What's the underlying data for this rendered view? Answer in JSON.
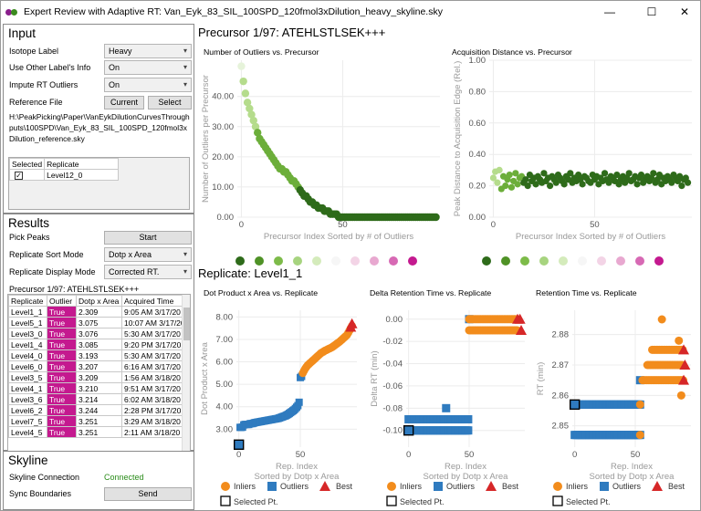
{
  "window": {
    "title": "Expert Review with Adaptive RT: Van_Eyk_83_SIL_100SPD_120fmol3xDilution_heavy_skyline.sky",
    "minimize": "—",
    "maximize": "☐",
    "close": "✕"
  },
  "input": {
    "header": "Input",
    "isotope_label": "Isotope Label",
    "isotope_value": "Heavy",
    "other_label": "Use Other Label's Info",
    "other_value": "On",
    "impute_label": "Impute RT Outliers",
    "impute_value": "On",
    "reference_label": "Reference File",
    "current_btn": "Current",
    "select_btn": "Select",
    "path": "H:\\PeakPicking\\Paper\\VanEykDilutionCurvesThroughputs\\100SPD\\Van_Eyk_83_SIL_100SPD_120fmol3xDilution_reference.sky",
    "table_headers": [
      "Selected",
      "Replicate"
    ],
    "table_rows": [
      {
        "checked": "✓",
        "replicate": "Level12_0"
      }
    ]
  },
  "results": {
    "header": "Results",
    "pick_label": "Pick Peaks",
    "start_btn": "Start",
    "sort_label": "Replicate Sort Mode",
    "sort_value": "Dotp x Area",
    "display_label": "Replicate Display Mode",
    "display_value": "Corrected RT.",
    "precursor_line": "Precursor 1/97: ATEHLSTLSEK+++",
    "headers": [
      "Replicate",
      "Outlier",
      "Dotp x Area",
      "Acquired Time"
    ],
    "rows": [
      [
        "Level1_1",
        "True",
        "2.309",
        "9:05 AM 3/17/20"
      ],
      [
        "Level5_1",
        "True",
        "3.075",
        "10:07 AM 3/17/20"
      ],
      [
        "Level3_0",
        "True",
        "3.076",
        "5:30 AM 3/17/20"
      ],
      [
        "Level1_4",
        "True",
        "3.085",
        "9:20 PM 3/17/20"
      ],
      [
        "Level4_0",
        "True",
        "3.193",
        "5:30 AM 3/17/20"
      ],
      [
        "Level6_0",
        "True",
        "3.207",
        "6:16 AM 3/17/20"
      ],
      [
        "Level3_5",
        "True",
        "3.209",
        "1:56 AM 3/18/20"
      ],
      [
        "Level4_1",
        "True",
        "3.210",
        "9:51 AM 3/17/20"
      ],
      [
        "Level3_6",
        "True",
        "3.214",
        "6:02 AM 3/18/20"
      ],
      [
        "Level6_2",
        "True",
        "3.244",
        "2:28 PM 3/17/20"
      ],
      [
        "Level7_5",
        "True",
        "3.251",
        "3:29 AM 3/18/20"
      ],
      [
        "Level4_5",
        "True",
        "3.251",
        "2:11 AM 3/18/20"
      ]
    ]
  },
  "skyline": {
    "header": "Skyline",
    "connection_label": "Skyline Connection",
    "connection_value": "Connected",
    "sync_label": "Sync Boundaries",
    "send_btn": "Send"
  },
  "main": {
    "precursor_header": "Precursor 1/97: ATEHLSTLSEK+++",
    "replicate_header": "Replicate: Level1_1"
  },
  "colors": {
    "green_dark": "#2e6b1a",
    "green_mid": "#6cae3a",
    "green_light": "#b5dc8c",
    "pink": "#c4198f",
    "blue": "#2f7bbf",
    "orange": "#f28c1c",
    "red": "#d62728"
  },
  "chart_data": [
    {
      "type": "scatter",
      "title": "Number of Outliers vs. Precursor",
      "xlabel": "Precursor Index Sorted by # of Outliers",
      "ylabel": "Number of Outliers per Precursor",
      "xlim": [
        -2,
        98
      ],
      "ylim": [
        0,
        52
      ],
      "yticks": [
        "0.00",
        "10.00",
        "20.00",
        "30.00",
        "40.00"
      ],
      "ytick_values": [
        0,
        10,
        20,
        30,
        40
      ],
      "xticks": [
        "0",
        "50"
      ],
      "xtick_values": [
        0,
        50
      ],
      "grid": true,
      "x": [
        0,
        1,
        2,
        3,
        4,
        5,
        6,
        7,
        8,
        9,
        10,
        11,
        12,
        13,
        14,
        15,
        16,
        17,
        18,
        19,
        20,
        21,
        22,
        23,
        24,
        25,
        26,
        27,
        28,
        29,
        30,
        31,
        32,
        33,
        34,
        35,
        36,
        37,
        38,
        39,
        40,
        41,
        42,
        43,
        44,
        45,
        46,
        47,
        48,
        49,
        50,
        51,
        52,
        53,
        54,
        55,
        56,
        57,
        58,
        59,
        60,
        61,
        62,
        63,
        64,
        65,
        66,
        67,
        68,
        69,
        70,
        71,
        72,
        73,
        74,
        75,
        76,
        77,
        78,
        79,
        80,
        81,
        82,
        83,
        84,
        85,
        86,
        87,
        88,
        89,
        90,
        91,
        92,
        93,
        94,
        95,
        96
      ],
      "y": [
        50,
        45,
        41,
        38,
        36,
        34,
        32,
        30,
        28,
        26,
        25,
        24,
        23,
        22,
        21,
        20,
        19,
        18,
        17,
        16,
        16,
        15,
        15,
        14,
        13,
        12,
        12,
        11,
        10,
        9,
        8,
        7,
        7,
        6,
        5,
        5,
        4,
        4,
        3,
        3,
        3,
        2,
        2,
        2,
        1,
        1,
        1,
        1,
        0,
        0,
        0,
        0,
        0,
        0,
        0,
        0,
        0,
        0,
        0,
        0,
        0,
        0,
        0,
        0,
        0,
        0,
        0,
        0,
        0,
        0,
        0,
        0,
        0,
        0,
        0,
        0,
        0,
        0,
        0,
        0,
        0,
        0,
        0,
        0,
        0,
        0,
        0,
        0,
        0,
        0,
        0,
        0,
        0,
        0,
        0,
        0,
        0
      ]
    },
    {
      "type": "scatter",
      "title": "Acquisition Distance vs. Precursor",
      "xlabel": "Precursor Index Sorted by # of Outliers",
      "ylabel": "Peak Distance to Acquisition Edge (Rel.)",
      "xlim": [
        -2,
        98
      ],
      "ylim": [
        0,
        1.0
      ],
      "yticks": [
        "0.00",
        "0.20",
        "0.40",
        "0.60",
        "0.80",
        "1.00"
      ],
      "ytick_values": [
        0,
        0.2,
        0.4,
        0.6,
        0.8,
        1.0
      ],
      "xticks": [
        "0",
        "50"
      ],
      "xtick_values": [
        0,
        50
      ],
      "grid": true,
      "x": [
        0,
        1,
        2,
        3,
        4,
        5,
        6,
        7,
        8,
        9,
        10,
        11,
        12,
        13,
        14,
        15,
        16,
        17,
        18,
        19,
        20,
        21,
        22,
        23,
        24,
        25,
        26,
        27,
        28,
        29,
        30,
        31,
        32,
        33,
        34,
        35,
        36,
        37,
        38,
        39,
        40,
        41,
        42,
        43,
        44,
        45,
        46,
        47,
        48,
        49,
        50,
        51,
        52,
        53,
        54,
        55,
        56,
        57,
        58,
        59,
        60,
        61,
        62,
        63,
        64,
        65,
        66,
        67,
        68,
        69,
        70,
        71,
        72,
        73,
        74,
        75,
        76,
        77,
        78,
        79,
        80,
        81,
        82,
        83,
        84,
        85,
        86,
        87,
        88,
        89,
        90,
        91,
        92,
        93,
        94,
        95,
        96
      ],
      "y": [
        0.25,
        0.29,
        0.22,
        0.3,
        0.18,
        0.26,
        0.2,
        0.24,
        0.27,
        0.19,
        0.23,
        0.28,
        0.21,
        0.25,
        0.26,
        0.22,
        0.24,
        0.2,
        0.27,
        0.23,
        0.25,
        0.21,
        0.26,
        0.24,
        0.22,
        0.28,
        0.23,
        0.25,
        0.2,
        0.26,
        0.24,
        0.22,
        0.27,
        0.25,
        0.23,
        0.21,
        0.26,
        0.24,
        0.28,
        0.22,
        0.25,
        0.23,
        0.27,
        0.24,
        0.21,
        0.26,
        0.25,
        0.23,
        0.22,
        0.27,
        0.24,
        0.26,
        0.21,
        0.25,
        0.23,
        0.28,
        0.24,
        0.22,
        0.26,
        0.25,
        0.23,
        0.27,
        0.21,
        0.24,
        0.26,
        0.22,
        0.25,
        0.28,
        0.23,
        0.24,
        0.26,
        0.21,
        0.25,
        0.27,
        0.22,
        0.24,
        0.26,
        0.23,
        0.25,
        0.28,
        0.22,
        0.24,
        0.27,
        0.21,
        0.25,
        0.23,
        0.26,
        0.24,
        0.22,
        0.27,
        0.25,
        0.23,
        0.26,
        0.2,
        0.24,
        0.25,
        0.22
      ]
    },
    {
      "type": "scatter",
      "title": "Dot Product x Area vs. Replicate",
      "xlabel": "Rep. Index",
      "xlabel2": "Sorted by Dotp x Area",
      "ylabel": "Dot Product x Area",
      "xlim": [
        -2,
        96
      ],
      "ylim": [
        2.2,
        8.3
      ],
      "yticks": [
        "3.00",
        "4.00",
        "5.00",
        "6.00",
        "7.00",
        "8.00"
      ],
      "ytick_values": [
        3,
        4,
        5,
        6,
        7,
        8
      ],
      "xticks": [
        "0",
        "50"
      ],
      "xtick_values": [
        0,
        50
      ],
      "legend": [
        "Inliers",
        "Outliers",
        "Best",
        "Selected Pt."
      ],
      "outliers_x": [
        0,
        1,
        2,
        3,
        4,
        5,
        6,
        7,
        8,
        9,
        10,
        11,
        12,
        13,
        14,
        15,
        16,
        17,
        18,
        19,
        20,
        21,
        22,
        23,
        24,
        25,
        26,
        27,
        28,
        29,
        30,
        31,
        32,
        33,
        34,
        35,
        36,
        37,
        38,
        39,
        40,
        41,
        42,
        43,
        44,
        45,
        46,
        47,
        48,
        49,
        50,
        51
      ],
      "outliers_y": [
        2.31,
        3.08,
        3.08,
        3.09,
        3.19,
        3.21,
        3.21,
        3.21,
        3.21,
        3.24,
        3.25,
        3.25,
        3.27,
        3.29,
        3.3,
        3.31,
        3.32,
        3.33,
        3.34,
        3.35,
        3.36,
        3.37,
        3.38,
        3.39,
        3.4,
        3.41,
        3.42,
        3.43,
        3.44,
        3.45,
        3.46,
        3.47,
        3.48,
        3.5,
        3.52,
        3.54,
        3.56,
        3.58,
        3.6,
        3.63,
        3.66,
        3.7,
        3.74,
        3.78,
        3.82,
        3.86,
        3.92,
        3.98,
        4.05,
        4.2,
        5.3,
        5.35
      ],
      "inliers_x": [
        52,
        53,
        54,
        55,
        56,
        57,
        58,
        59,
        60,
        61,
        62,
        63,
        64,
        65,
        66,
        67,
        68,
        69,
        70,
        71,
        72,
        73,
        74,
        75,
        76,
        77,
        78,
        79,
        80,
        81,
        82,
        83,
        84,
        85,
        86,
        87,
        88,
        89,
        90,
        91,
        92
      ],
      "inliers_y": [
        5.5,
        5.6,
        5.7,
        5.78,
        5.85,
        5.9,
        5.95,
        6.0,
        6.05,
        6.1,
        6.15,
        6.2,
        6.25,
        6.3,
        6.35,
        6.4,
        6.43,
        6.46,
        6.5,
        6.52,
        6.55,
        6.58,
        6.6,
        6.63,
        6.66,
        6.7,
        6.74,
        6.78,
        6.82,
        6.86,
        6.9,
        6.95,
        7.0,
        7.05,
        7.1,
        7.15,
        7.2,
        7.3,
        7.4,
        7.5,
        7.6
      ],
      "best": [
        [
          91,
          7.55
        ],
        [
          92,
          7.7
        ]
      ],
      "selected": [
        0,
        2.31
      ]
    },
    {
      "type": "scatter",
      "title": "Delta Retention Time vs. Replicate",
      "xlabel": "Rep. Index",
      "xlabel2": "Sorted by Dotp x Area",
      "ylabel": "Delta RT (min)",
      "xlim": [
        -2,
        96
      ],
      "ylim": [
        -0.115,
        0.008
      ],
      "yticks": [
        "-0.10",
        "-0.08",
        "-0.06",
        "-0.04",
        "-0.02",
        "0.00"
      ],
      "ytick_values": [
        -0.1,
        -0.08,
        -0.06,
        -0.04,
        -0.02,
        0
      ],
      "xticks": [
        "0",
        "50"
      ],
      "xtick_values": [
        0,
        50
      ],
      "legend": [
        "Inliers",
        "Outliers",
        "Best",
        "Selected Pt."
      ],
      "outlier_bands": [
        {
          "x0": 0,
          "x1": 50,
          "y": -0.1
        },
        {
          "x0": 0,
          "x1": 50,
          "y": -0.09
        }
      ],
      "outlier_extra": [
        [
          31,
          -0.08
        ],
        [
          50,
          0.0
        ]
      ],
      "inlier_bands": [
        {
          "x0": 50,
          "x1": 90,
          "y": 0.0
        },
        {
          "x0": 50,
          "x1": 90,
          "y": -0.01
        }
      ],
      "best": [
        [
          92,
          0.0
        ],
        [
          93,
          -0.01
        ],
        [
          90,
          0.0
        ]
      ],
      "selected": [
        0,
        -0.1
      ]
    },
    {
      "type": "scatter",
      "title": "Retention Time vs. Replicate",
      "xlabel": "Rep. Index",
      "xlabel2": "Sorted by Dotp x Area",
      "ylabel": "RT (min)",
      "xlim": [
        -2,
        96
      ],
      "ylim": [
        2.843,
        2.888
      ],
      "yticks": [
        "2.85",
        "2.86",
        "2.87",
        "2.88"
      ],
      "ytick_values": [
        2.85,
        2.86,
        2.87,
        2.88
      ],
      "xticks": [
        "0",
        "50"
      ],
      "xtick_values": [
        0,
        50
      ],
      "legend": [
        "Inliers",
        "Outliers",
        "Best",
        "Selected Pt."
      ],
      "outlier_bands": [
        {
          "x0": 0,
          "x1": 55,
          "y": 2.847
        },
        {
          "x0": 0,
          "x1": 55,
          "y": 2.857
        }
      ],
      "outlier_extra": [
        [
          54,
          2.865
        ]
      ],
      "inlier_bands": [
        {
          "x0": 56,
          "x1": 90,
          "y": 2.865
        },
        {
          "x0": 60,
          "x1": 90,
          "y": 2.87
        },
        {
          "x0": 64,
          "x1": 90,
          "y": 2.875
        }
      ],
      "inlier_extra": [
        [
          54,
          2.857
        ],
        [
          54,
          2.847
        ],
        [
          72,
          2.885
        ],
        [
          86,
          2.878
        ],
        [
          88,
          2.86
        ]
      ],
      "best": [
        [
          90,
          2.875
        ],
        [
          91,
          2.87
        ],
        [
          90,
          2.865
        ]
      ],
      "selected": [
        0,
        2.857
      ]
    }
  ]
}
